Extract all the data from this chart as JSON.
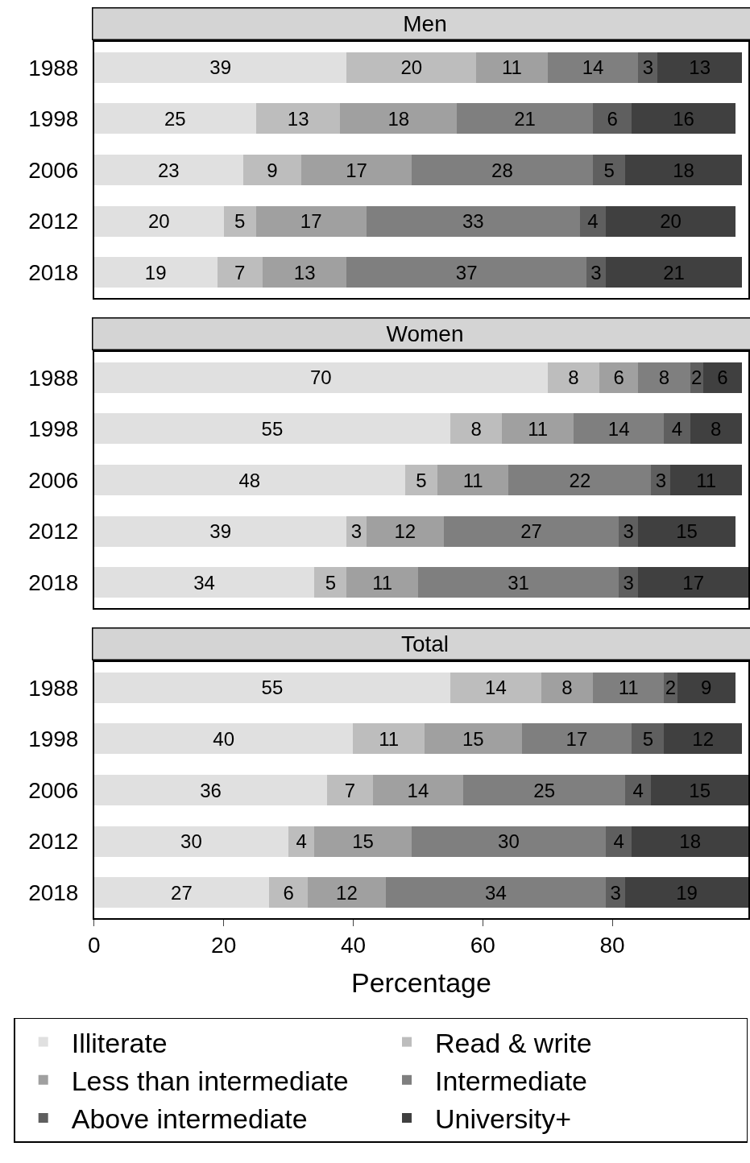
{
  "chart_data": [
    {
      "type": "bar",
      "title": "Men",
      "orientation": "horizontal",
      "stacked": true,
      "data_labels": true,
      "categories": [
        "1988",
        "1998",
        "2006",
        "2012",
        "2018"
      ],
      "xlim": [
        0,
        101
      ],
      "xticks": [
        0,
        20,
        40,
        60,
        80
      ],
      "tick_labels": "y",
      "legend": "bottom",
      "series": [
        {
          "name": "Illiterate",
          "color": "#e0e0e0",
          "values": [
            39,
            25,
            23,
            20,
            19
          ]
        },
        {
          "name": "Read & write",
          "color": "#bdbdbd",
          "values": [
            20,
            13,
            9,
            5,
            7
          ]
        },
        {
          "name": "Less than intermediate",
          "color": "#a0a0a0",
          "values": [
            11,
            18,
            17,
            17,
            13
          ]
        },
        {
          "name": "Intermediate",
          "color": "#7f7f7f",
          "values": [
            14,
            21,
            28,
            33,
            37
          ]
        },
        {
          "name": "Above intermediate",
          "color": "#5f5f5f",
          "values": [
            3,
            6,
            5,
            4,
            3
          ]
        },
        {
          "name": "University+",
          "color": "#404040",
          "values": [
            13,
            16,
            18,
            20,
            21
          ]
        }
      ]
    },
    {
      "type": "bar",
      "title": "Women",
      "orientation": "horizontal",
      "stacked": true,
      "data_labels": true,
      "categories": [
        "1988",
        "1998",
        "2006",
        "2012",
        "2018"
      ],
      "xlim": [
        0,
        101
      ],
      "xticks": [
        0,
        20,
        40,
        60,
        80
      ],
      "tick_labels": "y",
      "series": [
        {
          "color": "#e0e0e0",
          "values": [
            70,
            55,
            48,
            39,
            34
          ]
        },
        {
          "color": "#bdbdbd",
          "values": [
            8,
            8,
            5,
            3,
            5
          ]
        },
        {
          "color": "#a0a0a0",
          "values": [
            6,
            11,
            11,
            12,
            11
          ]
        },
        {
          "color": "#7f7f7f",
          "values": [
            8,
            14,
            22,
            27,
            31
          ]
        },
        {
          "color": "#5f5f5f",
          "values": [
            2,
            4,
            3,
            3,
            3
          ]
        },
        {
          "color": "#404040",
          "values": [
            6,
            8,
            11,
            15,
            17
          ]
        }
      ]
    },
    {
      "type": "bar",
      "title": "Total",
      "xlabel": "Percentage",
      "orientation": "horizontal",
      "stacked": true,
      "data_labels": true,
      "categories": [
        "1988",
        "1998",
        "2006",
        "2012",
        "2018"
      ],
      "xlim": [
        0,
        101
      ],
      "xticks": [
        0,
        20,
        40,
        60,
        80
      ],
      "series": [
        {
          "color": "#e0e0e0",
          "values": [
            55,
            40,
            36,
            30,
            27
          ]
        },
        {
          "color": "#bdbdbd",
          "values": [
            14,
            11,
            7,
            4,
            6
          ]
        },
        {
          "color": "#a0a0a0",
          "values": [
            8,
            15,
            14,
            15,
            12
          ]
        },
        {
          "color": "#7f7f7f",
          "values": [
            11,
            17,
            25,
            30,
            34
          ]
        },
        {
          "color": "#5f5f5f",
          "values": [
            2,
            5,
            4,
            4,
            3
          ]
        },
        {
          "color": "#404040",
          "values": [
            9,
            12,
            15,
            18,
            19
          ]
        }
      ]
    }
  ]
}
